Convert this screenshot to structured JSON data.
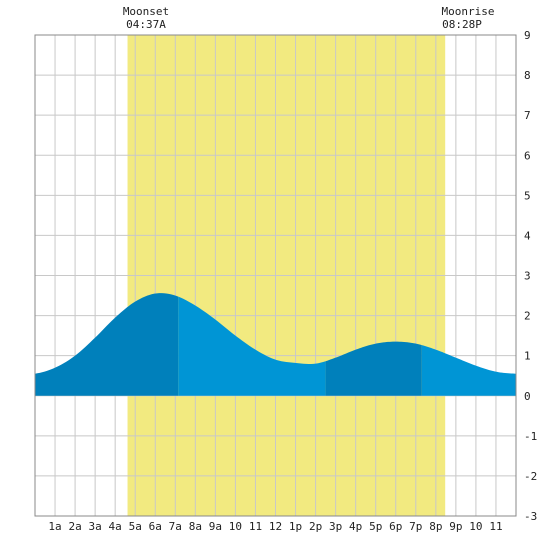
{
  "chart_data": {
    "type": "area",
    "x_range": [
      0,
      24
    ],
    "ylim": [
      -3,
      9
    ],
    "y_ticks": [
      "-3",
      "-2",
      "-1",
      "0",
      "1",
      "2",
      "3",
      "4",
      "5",
      "6",
      "7",
      "8",
      "9"
    ],
    "x_tick_labels": [
      "1a",
      "2a",
      "3a",
      "4a",
      "5a",
      "6a",
      "7a",
      "8a",
      "9a",
      "10",
      "11",
      "12",
      "1p",
      "2p",
      "3p",
      "4p",
      "5p",
      "6p",
      "7p",
      "8p",
      "9p",
      "10",
      "11"
    ],
    "grid": true,
    "moon": {
      "moonset": {
        "label": "Moonset",
        "time": "04:37A",
        "hour": 4.617
      },
      "moonrise": {
        "label": "Moonrise",
        "time": "08:28P",
        "hour": 20.467
      }
    },
    "tide_series": {
      "x": [
        0,
        1,
        2,
        3,
        4,
        5,
        6,
        7,
        8,
        9,
        10,
        11,
        12,
        13,
        14,
        15,
        16,
        17,
        18,
        19,
        20,
        21,
        22,
        23,
        24
      ],
      "y": [
        0.55,
        0.7,
        1.0,
        1.45,
        1.95,
        2.35,
        2.55,
        2.5,
        2.25,
        1.9,
        1.5,
        1.15,
        0.9,
        0.82,
        0.8,
        0.95,
        1.15,
        1.3,
        1.35,
        1.3,
        1.15,
        0.95,
        0.75,
        0.6,
        0.55
      ]
    },
    "tide_extremes_hours": [
      7.15,
      14.5,
      19.3
    ],
    "colors": {
      "daylight": "#f2ea80",
      "tide_light": "#0095d5",
      "tide_dark": "#0080bb",
      "grid": "#c8c8c8",
      "frame": "#888888"
    }
  }
}
